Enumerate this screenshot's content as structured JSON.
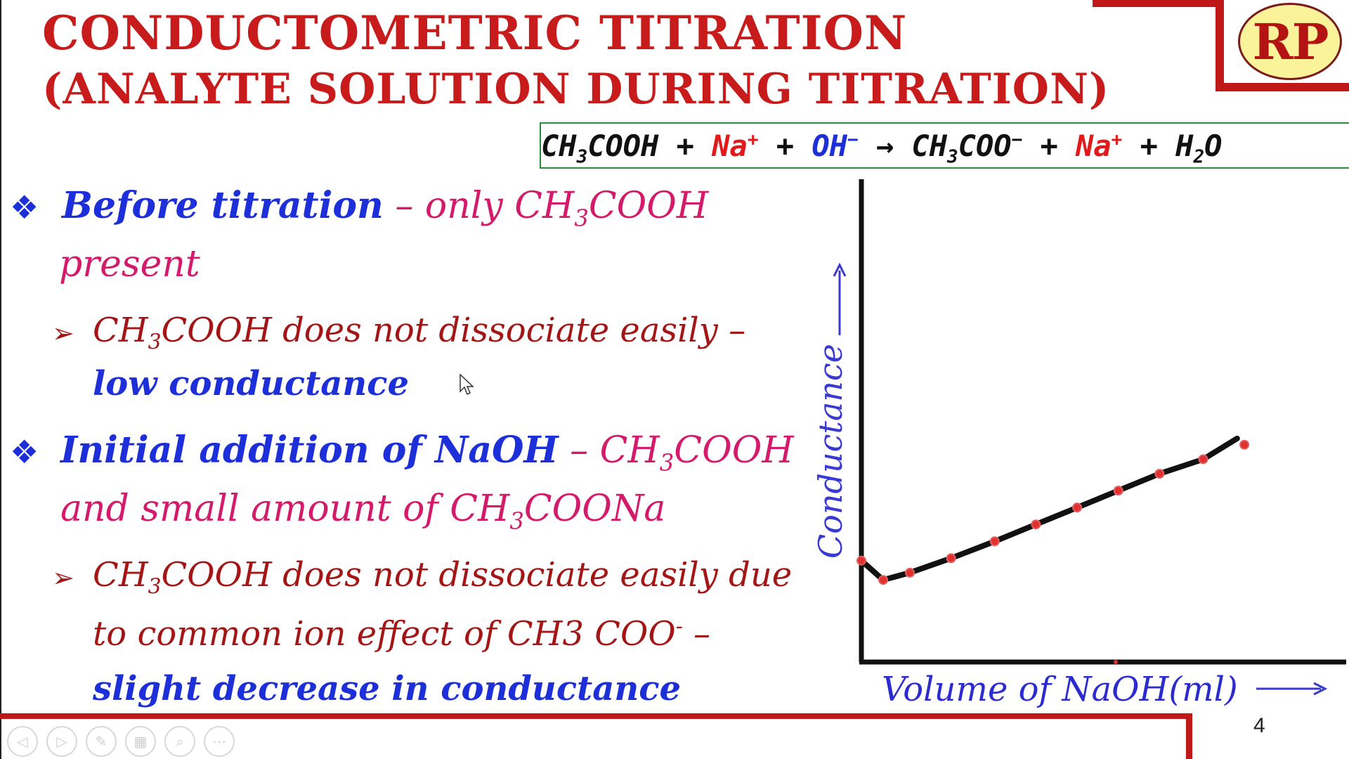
{
  "title": {
    "line1": "CONDUCTOMETRIC TITRATION",
    "line2": "(ANALYTE SOLUTION DURING TITRATION)"
  },
  "logo": {
    "text": "RP"
  },
  "equation": {
    "t1": "CH",
    "t1_sub": "3",
    "t2": "COOH + ",
    "na1": "Na",
    "na1_sup": "+",
    "plus1": " + ",
    "oh": "OH",
    "oh_sup": "−",
    "arrow": " → CH",
    "t3_sub": "3",
    "t4": "COO",
    "t4_sup": "−",
    "plus2": " + ",
    "na2": "Na",
    "na2_sup": "+",
    "plus3": " + H",
    "h2o_sub": "2",
    "h2o_o": "O"
  },
  "bullets": [
    {
      "head": "Before  titration",
      "dash": "  –  ",
      "rest_a": "only  CH",
      "rest_sub": "3",
      "rest_b": "COOH",
      "line2": "present",
      "sub_a": "CH",
      "sub_sub": "3",
      "sub_b": "COOH  does not dissociate easily –",
      "sub_line2": "low conductance"
    },
    {
      "head": "Initial addition of NaOH",
      "dash": " – ",
      "rest_a": "CH",
      "rest_sub": "3",
      "rest_b": "COOH",
      "line2_a": "and  small amount of CH",
      "line2_sub": "3",
      "line2_b": "COONa",
      "sub_a": "CH",
      "sub_sub": "3",
      "sub_b": "COOH  does not dissociate easily due",
      "sub_line2_a": "to common ion effect of CH3 COO",
      "sub_line2_sup": "-",
      "sub_line2_b": " –",
      "sub_line3": "slight decrease in conductance"
    }
  ],
  "chart_data": {
    "type": "line",
    "ylabel": "Conductance",
    "xlabel": "Volume of NaOH(ml)",
    "xlim": [
      0,
      10
    ],
    "ylim": [
      0,
      10
    ],
    "series": [
      {
        "points": [
          {
            "x": 0.0,
            "y": 2.1
          },
          {
            "x": 0.45,
            "y": 1.7
          },
          {
            "x": 1.0,
            "y": 1.85
          },
          {
            "x": 1.85,
            "y": 2.15
          },
          {
            "x": 2.75,
            "y": 2.5
          },
          {
            "x": 3.6,
            "y": 2.85
          },
          {
            "x": 4.45,
            "y": 3.2
          },
          {
            "x": 5.3,
            "y": 3.55
          },
          {
            "x": 6.15,
            "y": 3.9
          },
          {
            "x": 7.05,
            "y": 4.2
          },
          {
            "x": 7.9,
            "y": 4.5
          }
        ],
        "line_end": {
          "x": 7.75,
          "y": 4.63
        }
      }
    ],
    "marker_color": "#e03030",
    "line_color": "#111111",
    "axis_color": "#111111",
    "label_color": "#3a3ad0"
  },
  "page": {
    "number": "4"
  },
  "toolbar": {
    "prev_icon": "◁",
    "next_icon": "▷",
    "pen_icon": "✎",
    "slides_icon": "▦",
    "zoom_icon": "⌕",
    "more_icon": "⋯"
  },
  "colors": {
    "title_red": "#c81c1c",
    "accent_blue": "#1c2fd8",
    "pink": "#d41a6b",
    "dark_red": "#a41616",
    "frame_red": "#c01818",
    "logo_fill": "#fbf39a"
  }
}
